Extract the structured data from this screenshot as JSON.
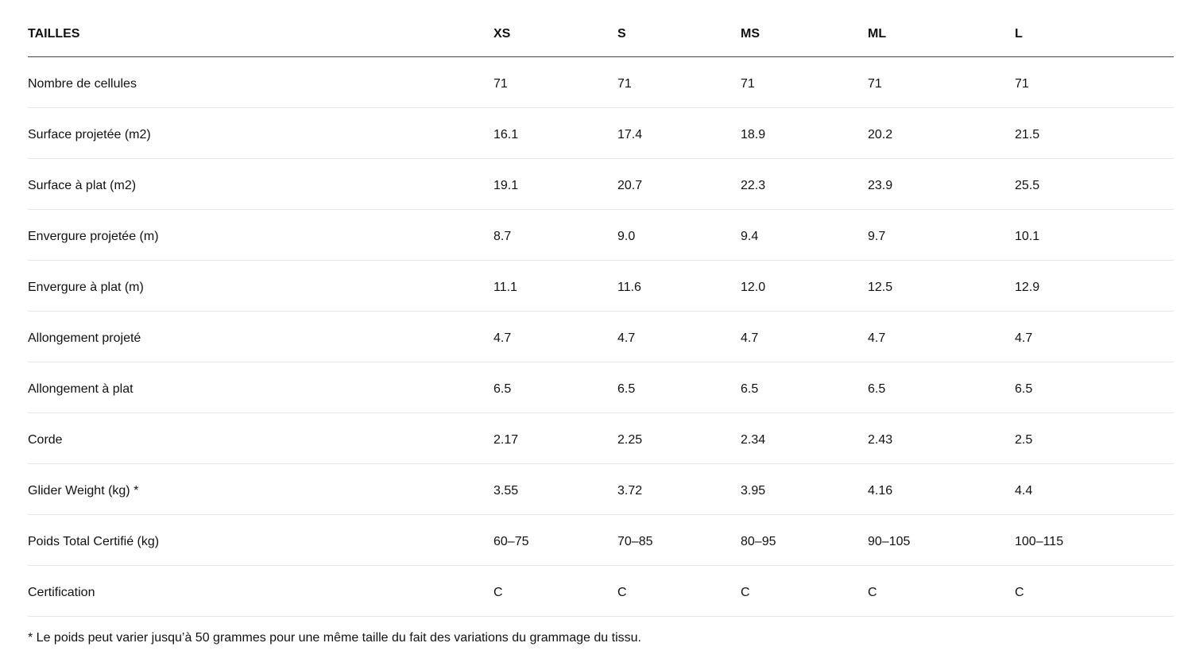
{
  "table": {
    "header": {
      "label": "TAILLES",
      "sizes": [
        "XS",
        "S",
        "MS",
        "ML",
        "L"
      ]
    },
    "rows": [
      {
        "label": "Nombre de cellules",
        "values": [
          "71",
          "71",
          "71",
          "71",
          "71"
        ]
      },
      {
        "label": "Surface projetée (m2)",
        "values": [
          "16.1",
          "17.4",
          "18.9",
          "20.2",
          "21.5"
        ]
      },
      {
        "label": "Surface à plat (m2)",
        "values": [
          "19.1",
          "20.7",
          "22.3",
          "23.9",
          "25.5"
        ]
      },
      {
        "label": "Envergure projetée (m)",
        "values": [
          "8.7",
          "9.0",
          "9.4",
          "9.7",
          "10.1"
        ]
      },
      {
        "label": "Envergure à plat (m)",
        "values": [
          "11.1",
          "11.6",
          "12.0",
          "12.5",
          "12.9"
        ]
      },
      {
        "label": "Allongement projeté",
        "values": [
          "4.7",
          "4.7",
          "4.7",
          "4.7",
          "4.7"
        ]
      },
      {
        "label": "Allongement à plat",
        "values": [
          "6.5",
          "6.5",
          "6.5",
          "6.5",
          "6.5"
        ]
      },
      {
        "label": "Corde",
        "values": [
          "2.17",
          "2.25",
          "2.34",
          "2.43",
          "2.5"
        ]
      },
      {
        "label": "Glider Weight (kg) *",
        "values": [
          "3.55",
          "3.72",
          "3.95",
          "4.16",
          "4.4"
        ]
      },
      {
        "label": "Poids Total Certifié (kg)",
        "values": [
          "60–75",
          "70–85",
          "80–95",
          "90–105",
          "100–115"
        ]
      },
      {
        "label": "Certification",
        "values": [
          "C",
          "C",
          "C",
          "C",
          "C"
        ]
      }
    ],
    "footnote": "* Le poids peut varier jusqu’à 50 grammes pour une même taille du fait des variations du grammage du tissu."
  },
  "colors": {
    "background": "#ffffff",
    "text": "#111111",
    "header_border": "#424245",
    "row_border": "#e6e6e8"
  }
}
